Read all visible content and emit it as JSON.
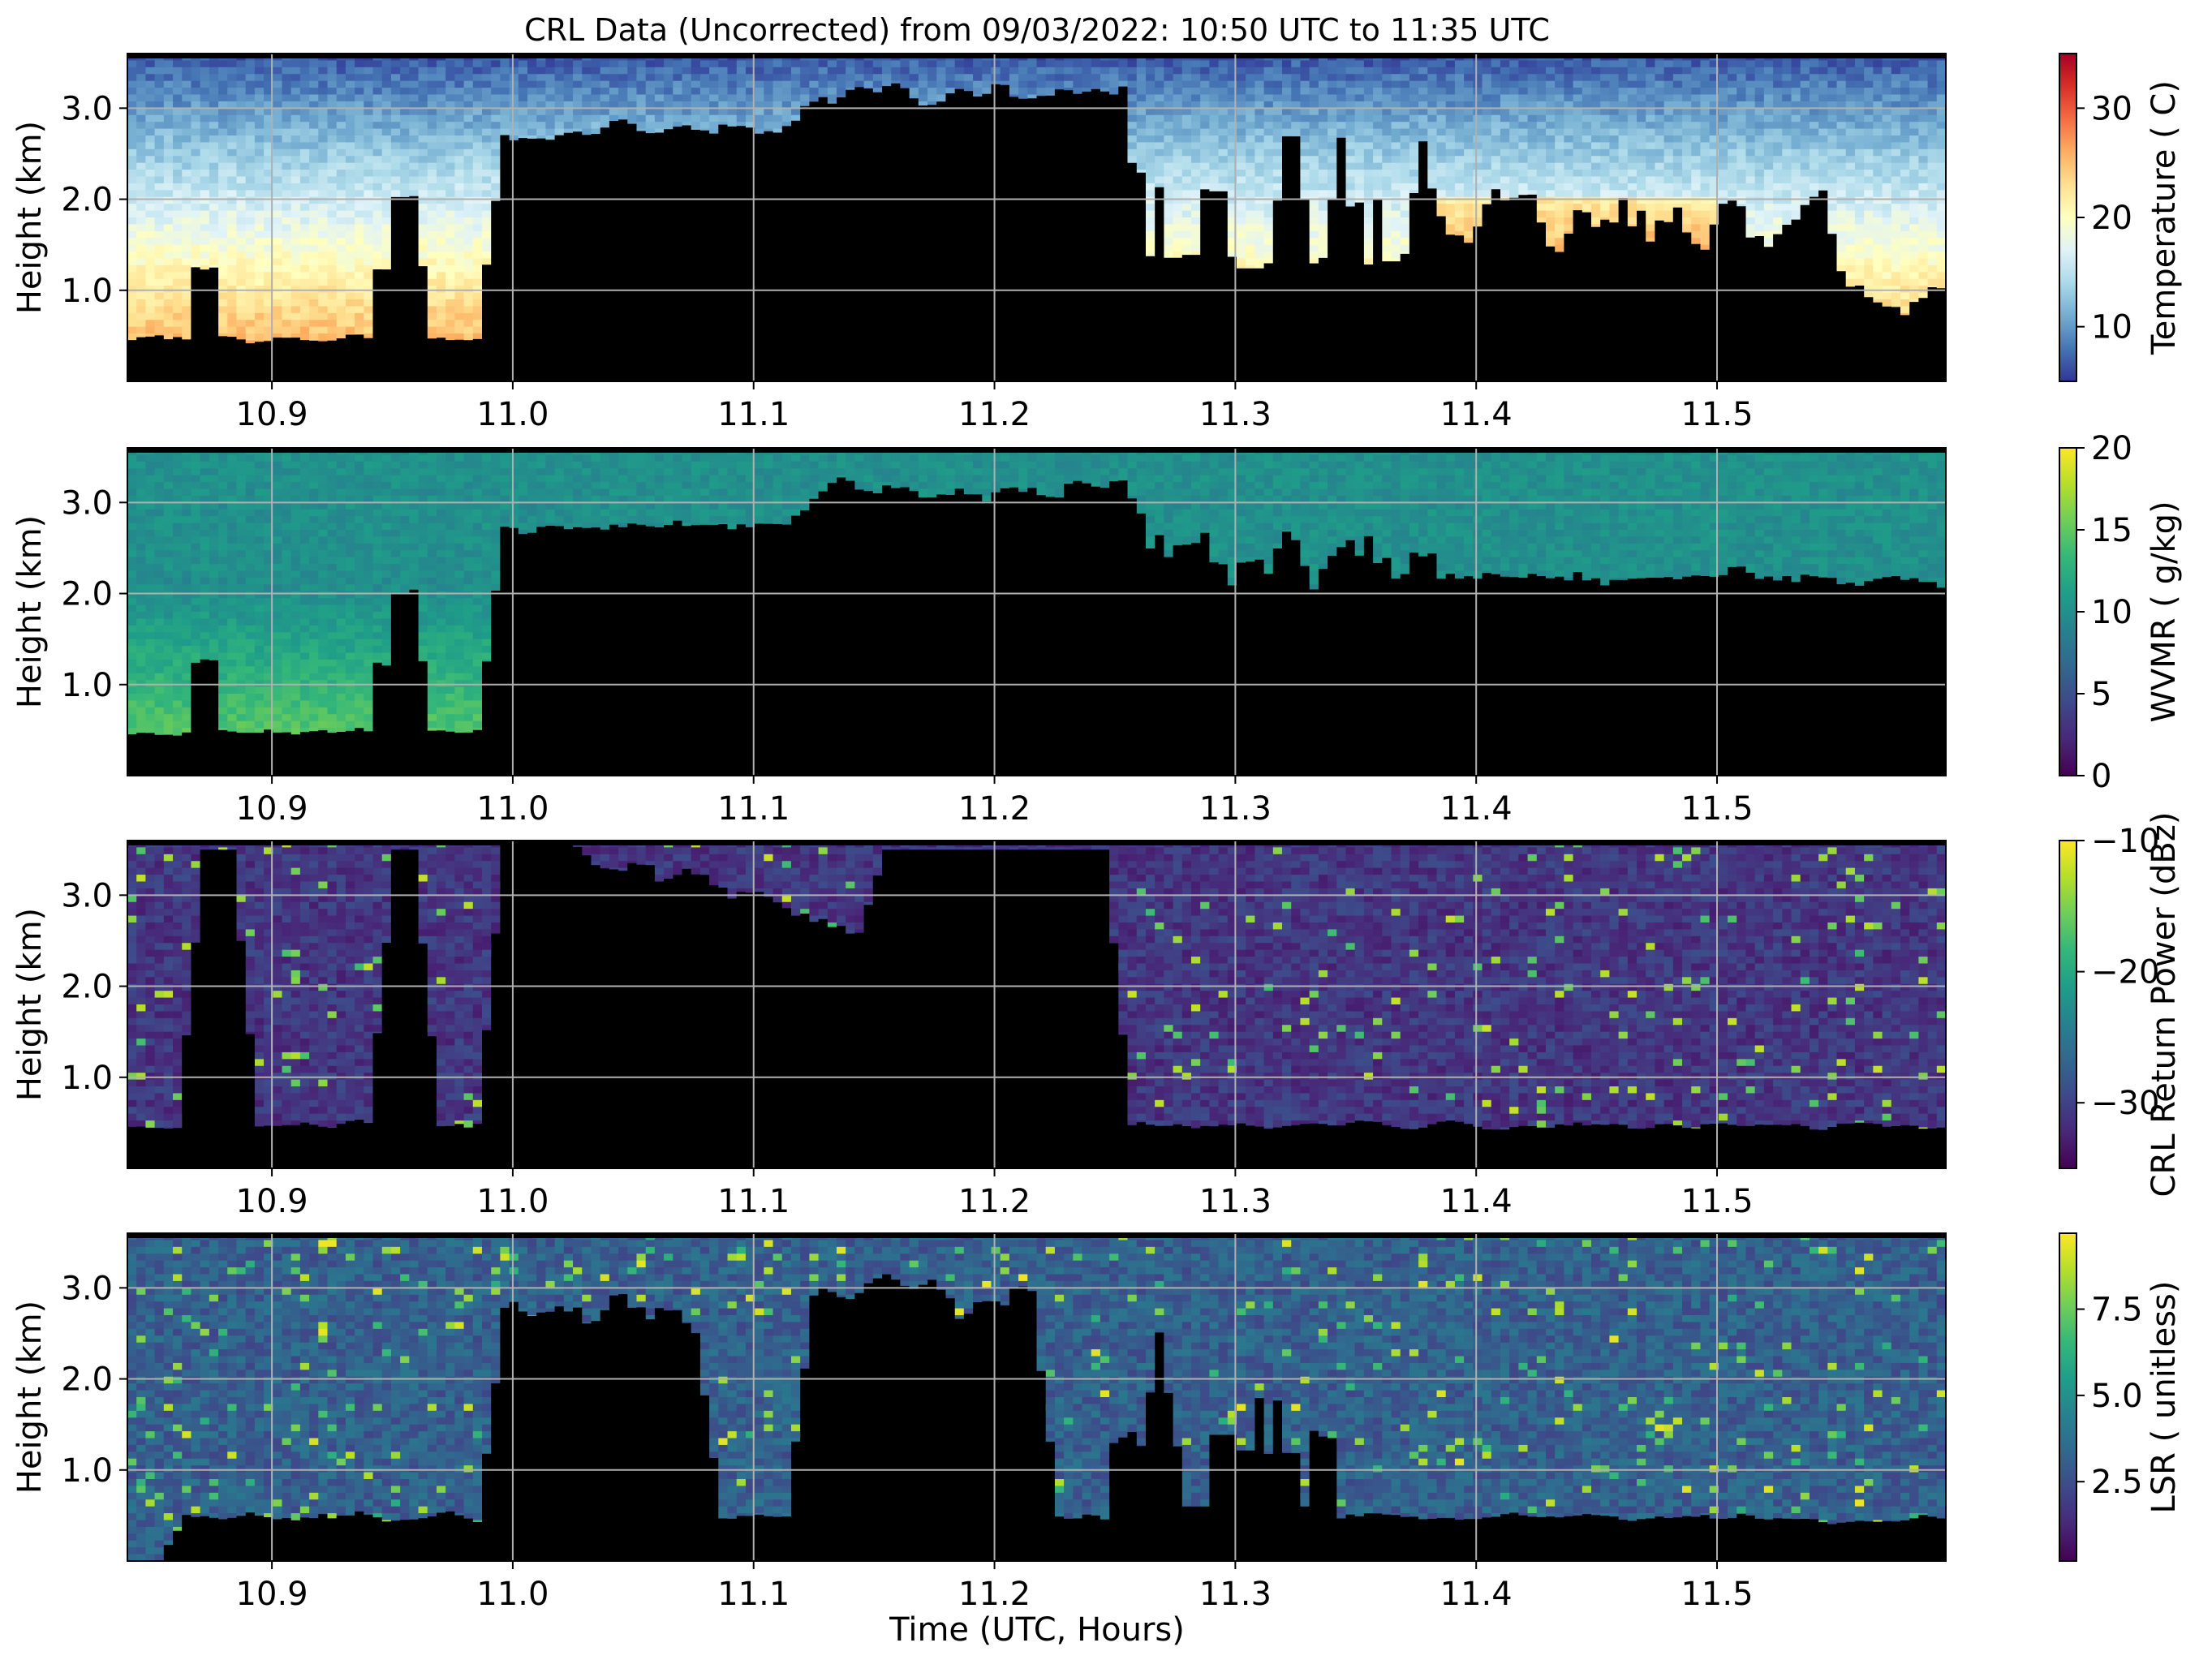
{
  "chart_data": {
    "type": "heatmap",
    "title": "CRL Data (Uncorrected) from 09/03/2022: 10:50 UTC to 11:35 UTC",
    "xlabel": "Time (UTC, Hours)",
    "xlim": [
      10.84,
      11.595
    ],
    "x_ticks": [
      10.9,
      11.0,
      11.1,
      11.2,
      11.3,
      11.4,
      11.5
    ],
    "x_tick_labels": [
      "10.9",
      "11.0",
      "11.1",
      "11.2",
      "11.3",
      "11.4",
      "11.5"
    ],
    "grid": true,
    "panels": [
      {
        "ylabel": "Height (km)",
        "ylim": [
          0.0,
          3.6
        ],
        "y_ticks": [
          1.0,
          2.0,
          3.0
        ],
        "y_tick_labels": [
          "1.0",
          "2.0",
          "3.0"
        ],
        "colorbar": {
          "label": "Temperature ( C)",
          "colormap": "RdYlBu_r",
          "range": [
            5,
            35
          ],
          "ticks": [
            10,
            20,
            30
          ],
          "tick_labels": [
            "10",
            "20",
            "30"
          ],
          "colors": [
            "#313695",
            "#4575b4",
            "#74add1",
            "#abd9e9",
            "#e0f3f8",
            "#ffffbf",
            "#fee090",
            "#fdae61",
            "#f46d43",
            "#d73027",
            "#a50026"
          ]
        }
      },
      {
        "ylabel": "Height (km)",
        "ylim": [
          0.0,
          3.6
        ],
        "y_ticks": [
          1.0,
          2.0,
          3.0
        ],
        "y_tick_labels": [
          "1.0",
          "2.0",
          "3.0"
        ],
        "colorbar": {
          "label": "WVMR ( g/kg)",
          "colormap": "viridis",
          "range": [
            0,
            20
          ],
          "ticks": [
            0,
            5,
            10,
            15,
            20
          ],
          "tick_labels": [
            "0",
            "5",
            "10",
            "15",
            "20"
          ],
          "colors": [
            "#440154",
            "#482878",
            "#3e4989",
            "#31688e",
            "#26828e",
            "#1f9e89",
            "#35b779",
            "#6ece58",
            "#b5de2b",
            "#fde725"
          ]
        }
      },
      {
        "ylabel": "Height (km)",
        "ylim": [
          0.0,
          3.6
        ],
        "y_ticks": [
          1.0,
          2.0,
          3.0
        ],
        "y_tick_labels": [
          "1.0",
          "2.0",
          "3.0"
        ],
        "colorbar": {
          "label": "CRL Return Power (dBz)",
          "colormap": "viridis",
          "range": [
            -35,
            -10
          ],
          "ticks": [
            -30,
            -20,
            -10
          ],
          "tick_labels": [
            "−30",
            "−20",
            "−10"
          ],
          "colors": [
            "#440154",
            "#482878",
            "#3e4989",
            "#31688e",
            "#26828e",
            "#1f9e89",
            "#35b779",
            "#6ece58",
            "#b5de2b",
            "#fde725"
          ]
        }
      },
      {
        "ylabel": "Height (km)",
        "ylim": [
          0.0,
          3.6
        ],
        "y_ticks": [
          1.0,
          2.0,
          3.0
        ],
        "y_tick_labels": [
          "1.0",
          "2.0",
          "3.0"
        ],
        "colorbar": {
          "label": "LSR ( unitless)",
          "colormap": "viridis",
          "range": [
            0.2,
            9.7
          ],
          "ticks": [
            2.5,
            5.0,
            7.5
          ],
          "tick_labels": [
            "2.5",
            "5.0",
            "7.5"
          ],
          "colors": [
            "#440154",
            "#482878",
            "#3e4989",
            "#31688e",
            "#26828e",
            "#1f9e89",
            "#35b779",
            "#6ece58",
            "#b5de2b",
            "#fde725"
          ]
        }
      }
    ]
  }
}
